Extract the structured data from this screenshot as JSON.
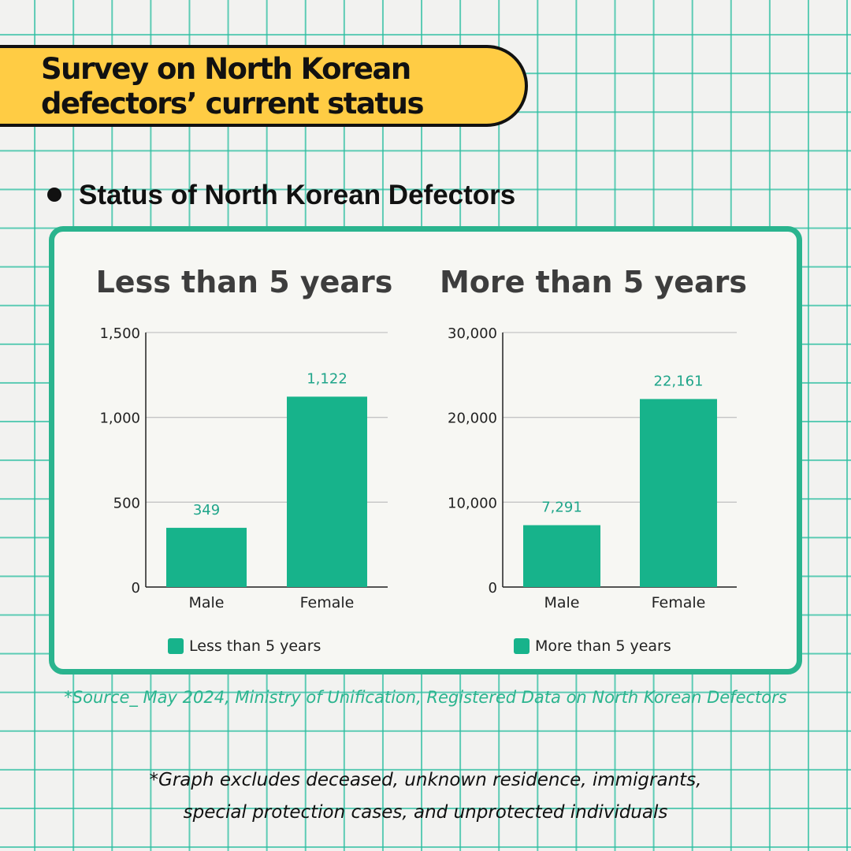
{
  "header": {
    "title_line1": "Survey on North Korean",
    "title_line2": "defectors’ current status"
  },
  "section": {
    "heading": "Status of North Korean Defectors"
  },
  "colors": {
    "accent": "#2ab48e",
    "bar": "#17b38b",
    "banner": "#ffcc44",
    "value_label": "#1fa58a"
  },
  "chart_data": [
    {
      "type": "bar",
      "title": "Less than 5 years",
      "categories": [
        "Male",
        "Female"
      ],
      "values": [
        349,
        1122
      ],
      "value_labels": [
        "349",
        "1,122"
      ],
      "ylim": [
        0,
        1500
      ],
      "yticks": [
        0,
        500,
        1000,
        1500
      ],
      "ytick_labels": [
        "0",
        "500",
        "1,000",
        "1,500"
      ],
      "legend": "Less than 5 years",
      "legend_position": "bottom",
      "grid": true
    },
    {
      "type": "bar",
      "title": "More than 5 years",
      "categories": [
        "Male",
        "Female"
      ],
      "values": [
        7291,
        22161
      ],
      "value_labels": [
        "7,291",
        "22,161"
      ],
      "ylim": [
        0,
        30000
      ],
      "yticks": [
        0,
        10000,
        20000,
        30000
      ],
      "ytick_labels": [
        "0",
        "10,000",
        "20,000",
        "30,000"
      ],
      "legend": "More than 5 years",
      "legend_position": "bottom",
      "grid": true
    }
  ],
  "source": "*Source_ May 2024, Ministry of Unification, Registered Data on North Korean Defectors",
  "footnote": {
    "line1": "*Graph excludes deceased, unknown residence, immigrants,",
    "line2": "special protection cases, and unprotected individuals"
  }
}
